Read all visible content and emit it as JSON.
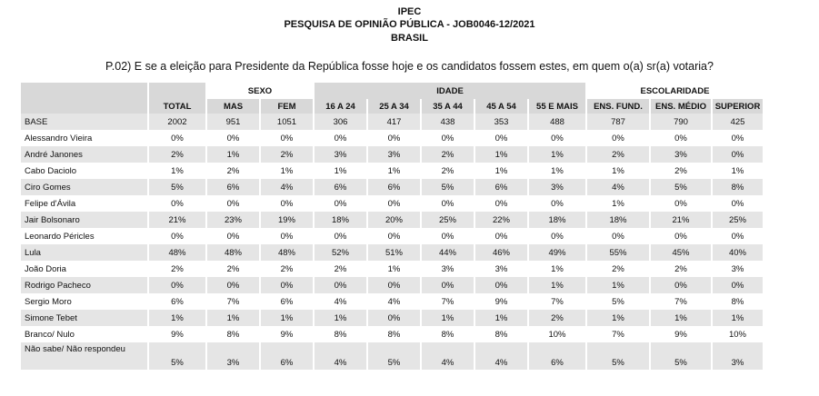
{
  "header": {
    "line1": "IPEC",
    "line2": "PESQUISA DE OPINIÃO PÚBLICA - JOB0046-12/2021",
    "line3": "BRASIL"
  },
  "question": "P.02) E se a eleição para Presidente da República fosse hoje e os candidatos fossem estes, em quem o(a) sr(a) votaria?",
  "table": {
    "groups": {
      "sexo": "SEXO",
      "idade": "IDADE",
      "escolaridade": "ESCOLARIDADE"
    },
    "columns": [
      "TOTAL",
      "MAS",
      "FEM",
      "16 A 24",
      "25 A 34",
      "35 A 44",
      "45 A 54",
      "55 E MAIS",
      "ENS. FUND.",
      "ENS. MÉDIO",
      "SUPERIOR"
    ],
    "rows": [
      {
        "label": "BASE",
        "values": [
          "2002",
          "951",
          "1051",
          "306",
          "417",
          "438",
          "353",
          "488",
          "787",
          "790",
          "425"
        ]
      },
      {
        "label": "Alessandro Vieira",
        "values": [
          "0%",
          "0%",
          "0%",
          "0%",
          "0%",
          "0%",
          "0%",
          "0%",
          "0%",
          "0%",
          "0%"
        ]
      },
      {
        "label": "André Janones",
        "values": [
          "2%",
          "1%",
          "2%",
          "3%",
          "3%",
          "2%",
          "1%",
          "1%",
          "2%",
          "3%",
          "0%"
        ]
      },
      {
        "label": "Cabo Daciolo",
        "values": [
          "1%",
          "2%",
          "1%",
          "1%",
          "1%",
          "2%",
          "1%",
          "1%",
          "1%",
          "2%",
          "1%"
        ]
      },
      {
        "label": "Ciro Gomes",
        "values": [
          "5%",
          "6%",
          "4%",
          "6%",
          "6%",
          "5%",
          "6%",
          "3%",
          "4%",
          "5%",
          "8%"
        ]
      },
      {
        "label": "Felipe d'Ávila",
        "values": [
          "0%",
          "0%",
          "0%",
          "0%",
          "0%",
          "0%",
          "0%",
          "0%",
          "1%",
          "0%",
          "0%"
        ]
      },
      {
        "label": "Jair Bolsonaro",
        "values": [
          "21%",
          "23%",
          "19%",
          "18%",
          "20%",
          "25%",
          "22%",
          "18%",
          "18%",
          "21%",
          "25%"
        ]
      },
      {
        "label": "Leonardo Péricles",
        "values": [
          "0%",
          "0%",
          "0%",
          "0%",
          "0%",
          "0%",
          "0%",
          "0%",
          "0%",
          "0%",
          "0%"
        ]
      },
      {
        "label": "Lula",
        "values": [
          "48%",
          "48%",
          "48%",
          "52%",
          "51%",
          "44%",
          "46%",
          "49%",
          "55%",
          "45%",
          "40%"
        ]
      },
      {
        "label": "João Doria",
        "values": [
          "2%",
          "2%",
          "2%",
          "2%",
          "1%",
          "3%",
          "3%",
          "1%",
          "2%",
          "2%",
          "3%"
        ]
      },
      {
        "label": "Rodrigo Pacheco",
        "values": [
          "0%",
          "0%",
          "0%",
          "0%",
          "0%",
          "0%",
          "0%",
          "1%",
          "1%",
          "0%",
          "0%"
        ]
      },
      {
        "label": "Sergio Moro",
        "values": [
          "6%",
          "7%",
          "6%",
          "4%",
          "4%",
          "7%",
          "9%",
          "7%",
          "5%",
          "7%",
          "8%"
        ]
      },
      {
        "label": "Simone Tebet",
        "values": [
          "1%",
          "1%",
          "1%",
          "1%",
          "0%",
          "1%",
          "1%",
          "2%",
          "1%",
          "1%",
          "1%"
        ]
      },
      {
        "label": "Branco/ Nulo",
        "values": [
          "9%",
          "8%",
          "9%",
          "8%",
          "8%",
          "8%",
          "8%",
          "10%",
          "7%",
          "9%",
          "10%"
        ]
      },
      {
        "label": "Não sabe/ Não respondeu",
        "values": [
          "5%",
          "3%",
          "6%",
          "4%",
          "5%",
          "4%",
          "4%",
          "6%",
          "5%",
          "5%",
          "3%"
        ]
      }
    ]
  }
}
